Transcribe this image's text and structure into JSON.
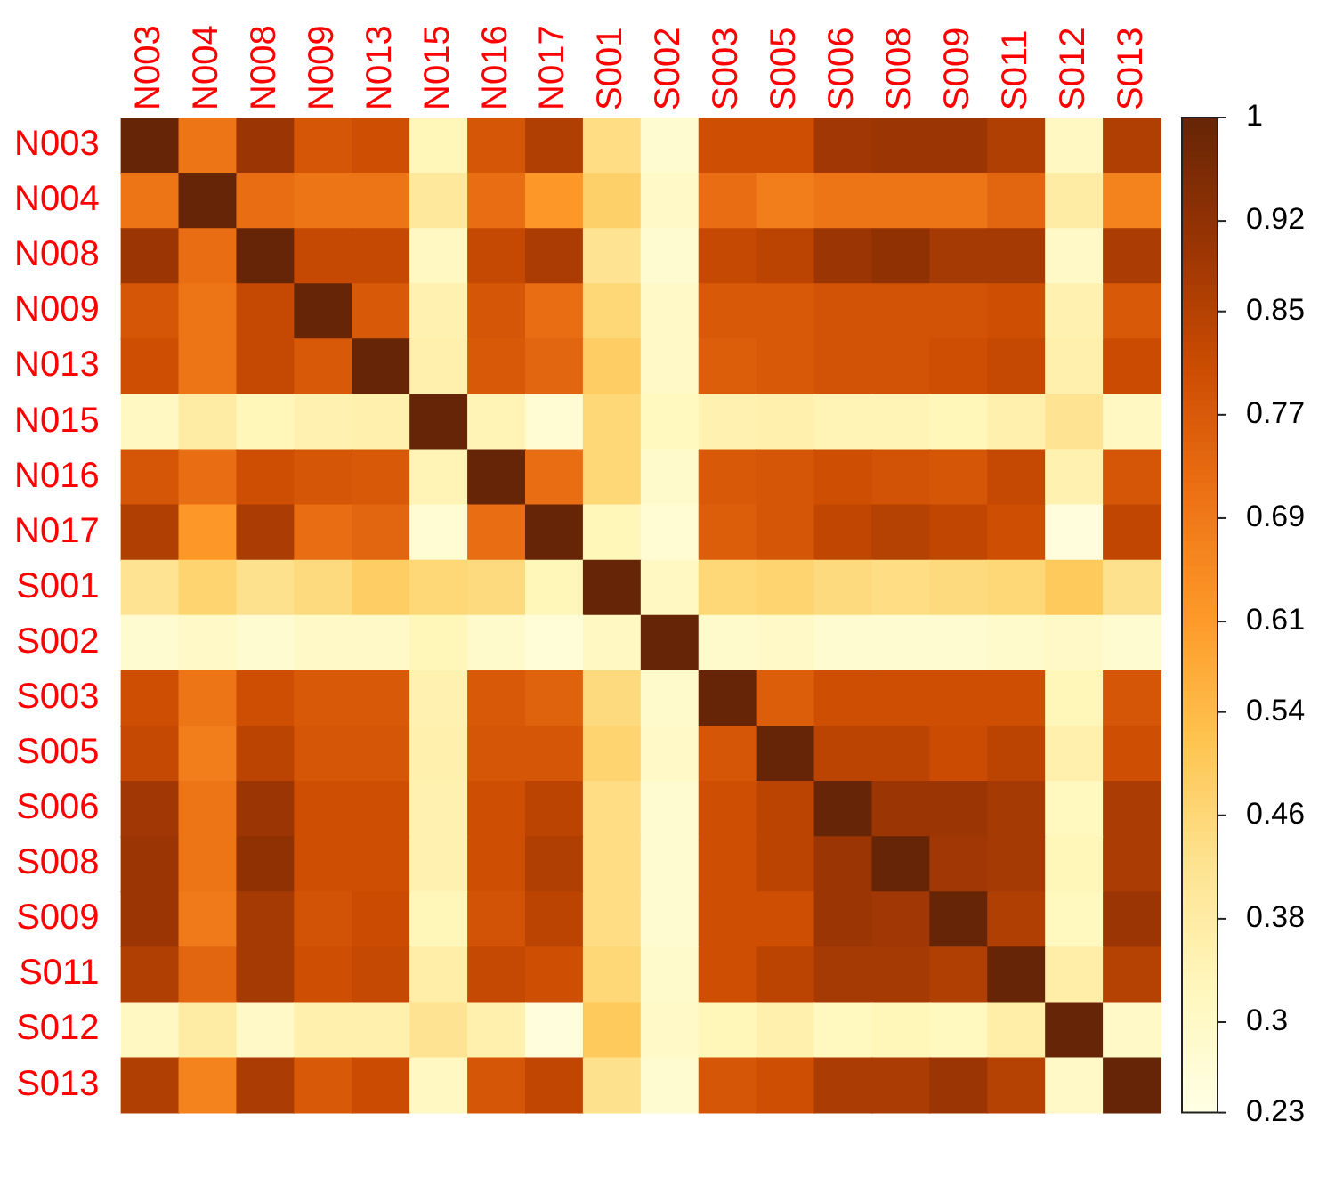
{
  "chart_data": {
    "type": "heatmap",
    "categories": [
      "N003",
      "N004",
      "N008",
      "N009",
      "N013",
      "N015",
      "N016",
      "N017",
      "S001",
      "S002",
      "S003",
      "S005",
      "S006",
      "S008",
      "S009",
      "S011",
      "S012",
      "S013"
    ],
    "y_categories": [
      "N003",
      "N004",
      "N008",
      "N009",
      "N013",
      "N015",
      "N016",
      "N017",
      "S001",
      "S002",
      "S003",
      "S005",
      "S006",
      "S008",
      "S009",
      "S011",
      "S012",
      "S013"
    ],
    "cells": [
      [
        1,
        0.7,
        0.9,
        0.78,
        0.8,
        0.33,
        0.78,
        0.86,
        0.44,
        0.28,
        0.8,
        0.8,
        0.89,
        0.9,
        0.9,
        0.86,
        0.31,
        0.86
      ],
      [
        0.7,
        1,
        0.72,
        0.7,
        0.7,
        0.4,
        0.72,
        0.62,
        0.48,
        0.3,
        0.72,
        0.68,
        0.7,
        0.7,
        0.7,
        0.74,
        0.38,
        0.67
      ],
      [
        0.9,
        0.72,
        1,
        0.82,
        0.82,
        0.31,
        0.82,
        0.87,
        0.42,
        0.28,
        0.82,
        0.84,
        0.9,
        0.92,
        0.88,
        0.88,
        0.3,
        0.87
      ],
      [
        0.78,
        0.7,
        0.82,
        1,
        0.77,
        0.35,
        0.78,
        0.72,
        0.46,
        0.3,
        0.77,
        0.77,
        0.79,
        0.79,
        0.79,
        0.8,
        0.35,
        0.77
      ],
      [
        0.8,
        0.7,
        0.82,
        0.77,
        1,
        0.36,
        0.77,
        0.74,
        0.49,
        0.3,
        0.76,
        0.77,
        0.79,
        0.79,
        0.8,
        0.82,
        0.36,
        0.81
      ],
      [
        0.31,
        0.38,
        0.33,
        0.35,
        0.36,
        1,
        0.34,
        0.27,
        0.46,
        0.32,
        0.35,
        0.36,
        0.34,
        0.34,
        0.33,
        0.36,
        0.42,
        0.31
      ],
      [
        0.78,
        0.72,
        0.8,
        0.78,
        0.77,
        0.34,
        1,
        0.72,
        0.46,
        0.29,
        0.77,
        0.78,
        0.8,
        0.79,
        0.78,
        0.82,
        0.35,
        0.78
      ],
      [
        0.86,
        0.62,
        0.87,
        0.72,
        0.74,
        0.27,
        0.72,
        1,
        0.33,
        0.27,
        0.76,
        0.78,
        0.83,
        0.85,
        0.83,
        0.8,
        0.25,
        0.83
      ],
      [
        0.42,
        0.47,
        0.43,
        0.45,
        0.49,
        0.46,
        0.45,
        0.33,
        1,
        0.31,
        0.46,
        0.47,
        0.45,
        0.44,
        0.45,
        0.46,
        0.5,
        0.43
      ],
      [
        0.28,
        0.3,
        0.28,
        0.3,
        0.3,
        0.33,
        0.29,
        0.26,
        0.31,
        1,
        0.29,
        0.3,
        0.28,
        0.28,
        0.28,
        0.29,
        0.3,
        0.28
      ],
      [
        0.8,
        0.7,
        0.8,
        0.77,
        0.77,
        0.35,
        0.77,
        0.75,
        0.45,
        0.29,
        1,
        0.76,
        0.8,
        0.8,
        0.8,
        0.8,
        0.33,
        0.78
      ],
      [
        0.82,
        0.68,
        0.84,
        0.78,
        0.78,
        0.36,
        0.78,
        0.78,
        0.47,
        0.3,
        0.78,
        1,
        0.84,
        0.84,
        0.81,
        0.84,
        0.36,
        0.8
      ],
      [
        0.89,
        0.7,
        0.9,
        0.8,
        0.8,
        0.35,
        0.8,
        0.84,
        0.44,
        0.28,
        0.8,
        0.84,
        1,
        0.9,
        0.9,
        0.88,
        0.32,
        0.87
      ],
      [
        0.9,
        0.7,
        0.92,
        0.8,
        0.8,
        0.35,
        0.8,
        0.86,
        0.44,
        0.28,
        0.8,
        0.84,
        0.9,
        1,
        0.89,
        0.88,
        0.33,
        0.87
      ],
      [
        0.9,
        0.69,
        0.88,
        0.79,
        0.81,
        0.33,
        0.79,
        0.84,
        0.44,
        0.28,
        0.8,
        0.8,
        0.9,
        0.89,
        1,
        0.86,
        0.32,
        0.9
      ],
      [
        0.86,
        0.74,
        0.88,
        0.8,
        0.82,
        0.37,
        0.82,
        0.8,
        0.46,
        0.29,
        0.8,
        0.84,
        0.88,
        0.88,
        0.86,
        1,
        0.37,
        0.85
      ],
      [
        0.31,
        0.38,
        0.3,
        0.36,
        0.36,
        0.42,
        0.36,
        0.25,
        0.5,
        0.3,
        0.33,
        0.36,
        0.32,
        0.33,
        0.32,
        0.37,
        1,
        0.3
      ],
      [
        0.86,
        0.67,
        0.87,
        0.77,
        0.81,
        0.31,
        0.78,
        0.83,
        0.43,
        0.28,
        0.78,
        0.8,
        0.87,
        0.87,
        0.9,
        0.85,
        0.3,
        1
      ]
    ],
    "clim": [
      0.23,
      1
    ],
    "cticks": [
      0.23,
      0.3,
      0.38,
      0.46,
      0.54,
      0.61,
      0.69,
      0.77,
      0.85,
      0.92,
      1
    ]
  }
}
